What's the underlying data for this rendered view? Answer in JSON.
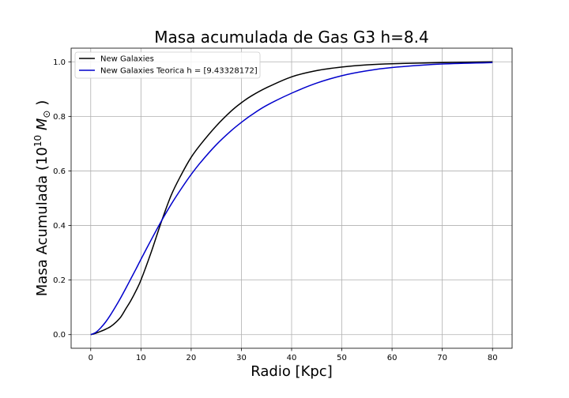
{
  "chart_data": {
    "type": "line",
    "title": "Masa acumulada de Gas G3 h=8.4",
    "xlabel": "Radio [Kpc]",
    "ylabel": "Masa Acumulada (10^10 M_☉)",
    "ylabel_parts": {
      "main": "Masa Acumulada (10",
      "exp": "10",
      "unit": " M",
      "sub": "⊙",
      "close": " )"
    },
    "xlim": [
      -3.9,
      83.9
    ],
    "ylim": [
      -0.05,
      1.05
    ],
    "xticks": [
      0,
      10,
      20,
      30,
      40,
      50,
      60,
      70,
      80
    ],
    "xtick_labels": [
      "0",
      "10",
      "20",
      "30",
      "40",
      "50",
      "60",
      "70",
      "80"
    ],
    "yticks": [
      0.0,
      0.2,
      0.4,
      0.6,
      0.8,
      1.0
    ],
    "ytick_labels": [
      "0.0",
      "0.2",
      "0.4",
      "0.6",
      "0.8",
      "1.0"
    ],
    "grid": true,
    "legend_position": "top-left",
    "series": [
      {
        "name": "New Galaxies",
        "color": "#000000",
        "x": [
          0,
          1,
          2,
          3,
          4,
          5,
          6,
          7,
          8,
          9,
          10,
          12,
          14,
          16,
          18,
          20,
          22,
          25,
          28,
          30,
          32,
          35,
          40,
          45,
          50,
          55,
          60,
          70,
          80
        ],
        "y": [
          0.0,
          0.005,
          0.012,
          0.02,
          0.03,
          0.045,
          0.065,
          0.095,
          0.125,
          0.16,
          0.2,
          0.3,
          0.41,
          0.51,
          0.585,
          0.65,
          0.7,
          0.765,
          0.82,
          0.85,
          0.875,
          0.905,
          0.945,
          0.968,
          0.981,
          0.989,
          0.993,
          0.997,
          1.0
        ]
      },
      {
        "name": "New Galaxies Teorica h = [9.43328172]",
        "color": "#0000cc",
        "x": [
          0,
          1,
          2,
          3,
          4,
          5,
          6,
          7,
          8,
          9,
          10,
          12,
          14,
          16,
          18,
          20,
          22,
          25,
          28,
          30,
          32,
          35,
          40,
          45,
          50,
          55,
          60,
          70,
          80
        ],
        "y": [
          0.0,
          0.008,
          0.025,
          0.047,
          0.074,
          0.104,
          0.136,
          0.17,
          0.205,
          0.24,
          0.276,
          0.346,
          0.414,
          0.477,
          0.534,
          0.587,
          0.634,
          0.696,
          0.748,
          0.778,
          0.805,
          0.84,
          0.885,
          0.922,
          0.949,
          0.967,
          0.979,
          0.992,
          0.997
        ]
      }
    ]
  }
}
